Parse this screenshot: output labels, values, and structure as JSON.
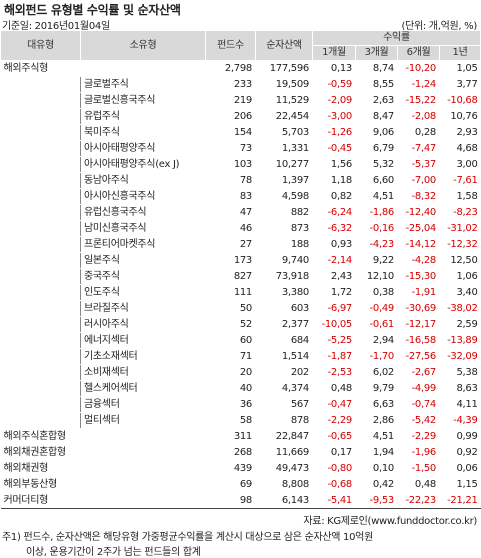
{
  "title": "해외펀드 유형별 수익률 및 순자산액",
  "base_date": "기준일: 2016년01월04일",
  "unit": "(단위: 개,억원, %)",
  "headers": {
    "major": "대유형",
    "minor": "소유형",
    "fund_count": "펀드수",
    "net_assets": "순자산액",
    "returns": "수익률",
    "m1": "1개월",
    "m3": "3개월",
    "m6": "6개월",
    "y1": "1년"
  },
  "rows": [
    {
      "cat": "해외주식형",
      "sub": "",
      "count": "2,798",
      "assets": "177,596",
      "m1": "0,13",
      "m3": "8,74",
      "m6": "-10,20",
      "y1": "1,05"
    },
    {
      "cat": "",
      "sub": "글로벌주식",
      "count": "233",
      "assets": "19,509",
      "m1": "-0,59",
      "m3": "8,55",
      "m6": "-1,24",
      "y1": "3,77"
    },
    {
      "cat": "",
      "sub": "글로벌신흥국주식",
      "count": "219",
      "assets": "11,529",
      "m1": "-2,09",
      "m3": "2,63",
      "m6": "-15,22",
      "y1": "-10,68"
    },
    {
      "cat": "",
      "sub": "유럽주식",
      "count": "206",
      "assets": "22,454",
      "m1": "-3,00",
      "m3": "8,47",
      "m6": "-2,08",
      "y1": "10,76"
    },
    {
      "cat": "",
      "sub": "북미주식",
      "count": "154",
      "assets": "5,703",
      "m1": "-1,26",
      "m3": "9,06",
      "m6": "0,28",
      "y1": "2,93"
    },
    {
      "cat": "",
      "sub": "아시아태평양주식",
      "count": "73",
      "assets": "1,331",
      "m1": "-0,45",
      "m3": "6,79",
      "m6": "-7,47",
      "y1": "4,68"
    },
    {
      "cat": "",
      "sub": "아시아태평양주식(ex J)",
      "count": "103",
      "assets": "10,277",
      "m1": "1,56",
      "m3": "5,32",
      "m6": "-5,37",
      "y1": "3,00"
    },
    {
      "cat": "",
      "sub": "동남아주식",
      "count": "78",
      "assets": "1,397",
      "m1": "1,18",
      "m3": "6,60",
      "m6": "-7,00",
      "y1": "-7,61"
    },
    {
      "cat": "",
      "sub": "아시아신흥국주식",
      "count": "83",
      "assets": "4,598",
      "m1": "0,82",
      "m3": "4,51",
      "m6": "-8,32",
      "y1": "1,58"
    },
    {
      "cat": "",
      "sub": "유럽신흥국주식",
      "count": "47",
      "assets": "882",
      "m1": "-6,24",
      "m3": "-1,86",
      "m6": "-12,40",
      "y1": "-8,23"
    },
    {
      "cat": "",
      "sub": "남미신흥국주식",
      "count": "46",
      "assets": "873",
      "m1": "-6,32",
      "m3": "-0,16",
      "m6": "-25,04",
      "y1": "-31,02"
    },
    {
      "cat": "",
      "sub": "프론티어마켓주식",
      "count": "27",
      "assets": "188",
      "m1": "0,93",
      "m3": "-4,23",
      "m6": "-14,12",
      "y1": "-12,32"
    },
    {
      "cat": "",
      "sub": "일본주식",
      "count": "173",
      "assets": "9,740",
      "m1": "-2,14",
      "m3": "9,22",
      "m6": "-4,28",
      "y1": "12,50",
      "group_start": true
    },
    {
      "cat": "",
      "sub": "중국주식",
      "count": "827",
      "assets": "73,918",
      "m1": "2,43",
      "m3": "12,10",
      "m6": "-15,30",
      "y1": "1,06"
    },
    {
      "cat": "",
      "sub": "인도주식",
      "count": "111",
      "assets": "3,380",
      "m1": "1,72",
      "m3": "0,38",
      "m6": "-1,91",
      "y1": "3,40"
    },
    {
      "cat": "",
      "sub": "브라질주식",
      "count": "50",
      "assets": "603",
      "m1": "-6,97",
      "m3": "-0,49",
      "m6": "-30,69",
      "y1": "-38,02"
    },
    {
      "cat": "",
      "sub": "러시아주식",
      "count": "52",
      "assets": "2,377",
      "m1": "-10,05",
      "m3": "-0,61",
      "m6": "-12,17",
      "y1": "2,59"
    },
    {
      "cat": "",
      "sub": "에너지섹터",
      "count": "60",
      "assets": "684",
      "m1": "-5,25",
      "m3": "2,94",
      "m6": "-16,58",
      "y1": "-13,89",
      "group_start": true
    },
    {
      "cat": "",
      "sub": "기초소재섹터",
      "count": "71",
      "assets": "1,514",
      "m1": "-1,87",
      "m3": "-1,70",
      "m6": "-27,56",
      "y1": "-32,09"
    },
    {
      "cat": "",
      "sub": "소비재섹터",
      "count": "20",
      "assets": "202",
      "m1": "-2,53",
      "m3": "6,02",
      "m6": "-2,67",
      "y1": "5,38"
    },
    {
      "cat": "",
      "sub": "헬스케어섹터",
      "count": "40",
      "assets": "4,374",
      "m1": "0,48",
      "m3": "9,79",
      "m6": "-4,99",
      "y1": "8,63"
    },
    {
      "cat": "",
      "sub": "금융섹터",
      "count": "36",
      "assets": "567",
      "m1": "-0,47",
      "m3": "6,63",
      "m6": "-0,74",
      "y1": "4,11"
    },
    {
      "cat": "",
      "sub": "멀티섹터",
      "count": "58",
      "assets": "878",
      "m1": "-2,29",
      "m3": "2,86",
      "m6": "-5,42",
      "y1": "-4,39"
    },
    {
      "cat": "해외주식혼합형",
      "sub": "",
      "count": "311",
      "assets": "22,847",
      "m1": "-0,65",
      "m3": "4,51",
      "m6": "-2,29",
      "y1": "0,99",
      "top_rule": true
    },
    {
      "cat": "해외채권혼합형",
      "sub": "",
      "count": "268",
      "assets": "11,669",
      "m1": "0,17",
      "m3": "1,94",
      "m6": "-1,96",
      "y1": "0,92",
      "top_rule": true
    },
    {
      "cat": "해외채권형",
      "sub": "",
      "count": "439",
      "assets": "49,473",
      "m1": "-0,80",
      "m3": "0,10",
      "m6": "-1,50",
      "y1": "0,06",
      "top_rule": true
    },
    {
      "cat": "해외부동산형",
      "sub": "",
      "count": "69",
      "assets": "8,808",
      "m1": "-0,68",
      "m3": "0,42",
      "m6": "0,48",
      "y1": "1,15",
      "top_rule": true
    },
    {
      "cat": "커머더티형",
      "sub": "",
      "count": "98",
      "assets": "6,143",
      "m1": "-5,41",
      "m3": "-9,53",
      "m6": "-22,23",
      "y1": "-21,21",
      "top_rule": true,
      "bottom_rule": true
    }
  ],
  "source": "자료: KG제로인(www.funddoctor.co.kr)",
  "note1": "주1) 펀드수, 순자산액은 해당유형 가중평균수익률을 계산시 대상으로 삼은 순자산액 10억원",
  "note2": "이상, 운용기간이 2주가 넘는 펀드들의 합계"
}
